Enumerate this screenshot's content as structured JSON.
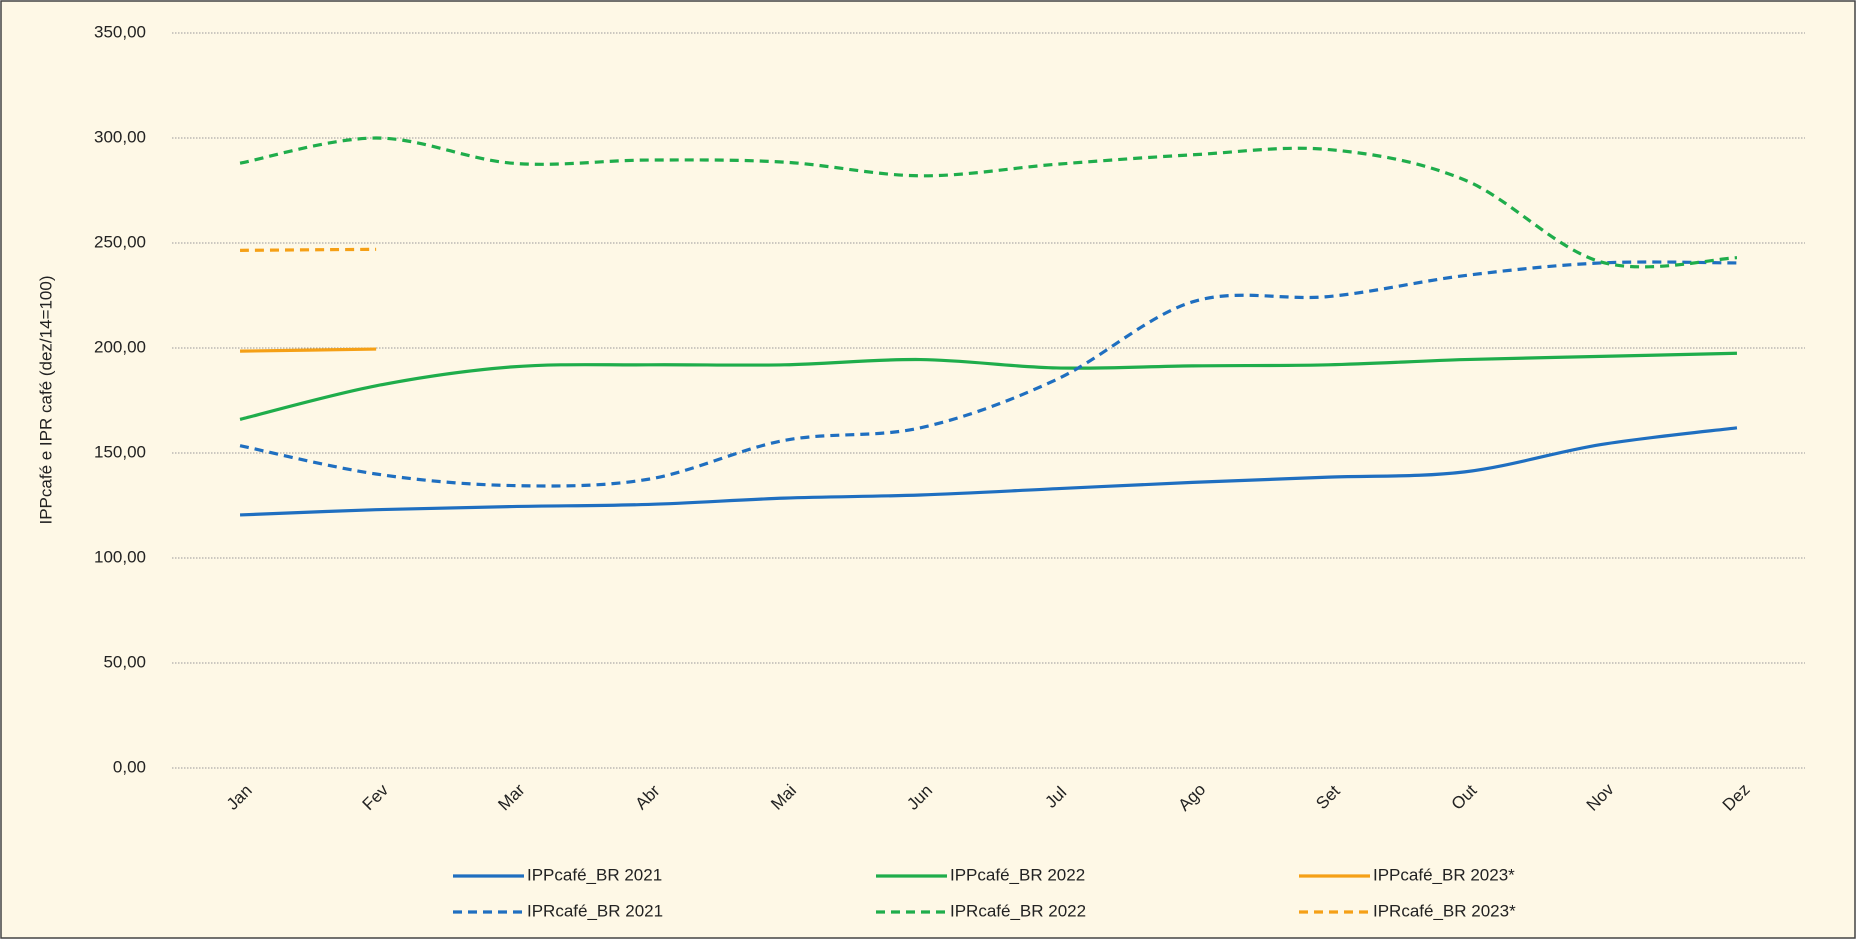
{
  "chart_data": {
    "type": "line",
    "y_label": "IPPcafé e IPR café (dez/14=100)",
    "categories": [
      "Jan",
      "Fev",
      "Mar",
      "Abr",
      "Mai",
      "Jun",
      "Jul",
      "Ago",
      "Set",
      "Out",
      "Nov",
      "Dez"
    ],
    "ylim": [
      0,
      350
    ],
    "yticks": [
      {
        "value": 0,
        "label": "0,00"
      },
      {
        "value": 50,
        "label": "50,00"
      },
      {
        "value": 100,
        "label": "100,00"
      },
      {
        "value": 150,
        "label": "150,00"
      },
      {
        "value": 200,
        "label": "200,00"
      },
      {
        "value": 250,
        "label": "250,00"
      },
      {
        "value": 300,
        "label": "300,00"
      },
      {
        "value": 350,
        "label": "350,00"
      }
    ],
    "grid": true,
    "legend": "bottom",
    "series": [
      {
        "name": "IPPcafé_BR 2021",
        "color": "#1f6fc0",
        "dashed": false,
        "values": [
          120.5,
          123,
          124.5,
          125.5,
          128.5,
          130,
          133,
          136,
          138.5,
          141,
          154,
          162
        ]
      },
      {
        "name": "IPPcafé_BR 2022",
        "color": "#1fad4b",
        "dashed": false,
        "values": [
          166,
          182,
          191,
          192,
          192,
          194.5,
          190.5,
          191.5,
          192,
          194.5,
          196,
          197.5
        ]
      },
      {
        "name": "IPPcafé_BR 2023*",
        "color": "#f5a016",
        "dashed": false,
        "values": [
          198.5,
          199.5,
          null,
          null,
          null,
          null,
          null,
          null,
          null,
          null,
          null,
          null
        ]
      },
      {
        "name": "IPRcafé_BR 2021",
        "color": "#1f6fc0",
        "dashed": true,
        "values": [
          153.5,
          140,
          134.5,
          137.5,
          156,
          162,
          185,
          222,
          224.5,
          234.5,
          240.5,
          240.5
        ]
      },
      {
        "name": "IPRcafé_BR 2022",
        "color": "#1fad4b",
        "dashed": true,
        "values": [
          288,
          300,
          288,
          289.5,
          288.5,
          282,
          287.5,
          292,
          294.5,
          280,
          241,
          243
        ]
      },
      {
        "name": "IPRcafé_BR 2023*",
        "color": "#f5a016",
        "dashed": true,
        "values": [
          246.5,
          247,
          null,
          null,
          null,
          null,
          null,
          null,
          null,
          null,
          null,
          null
        ]
      }
    ]
  }
}
